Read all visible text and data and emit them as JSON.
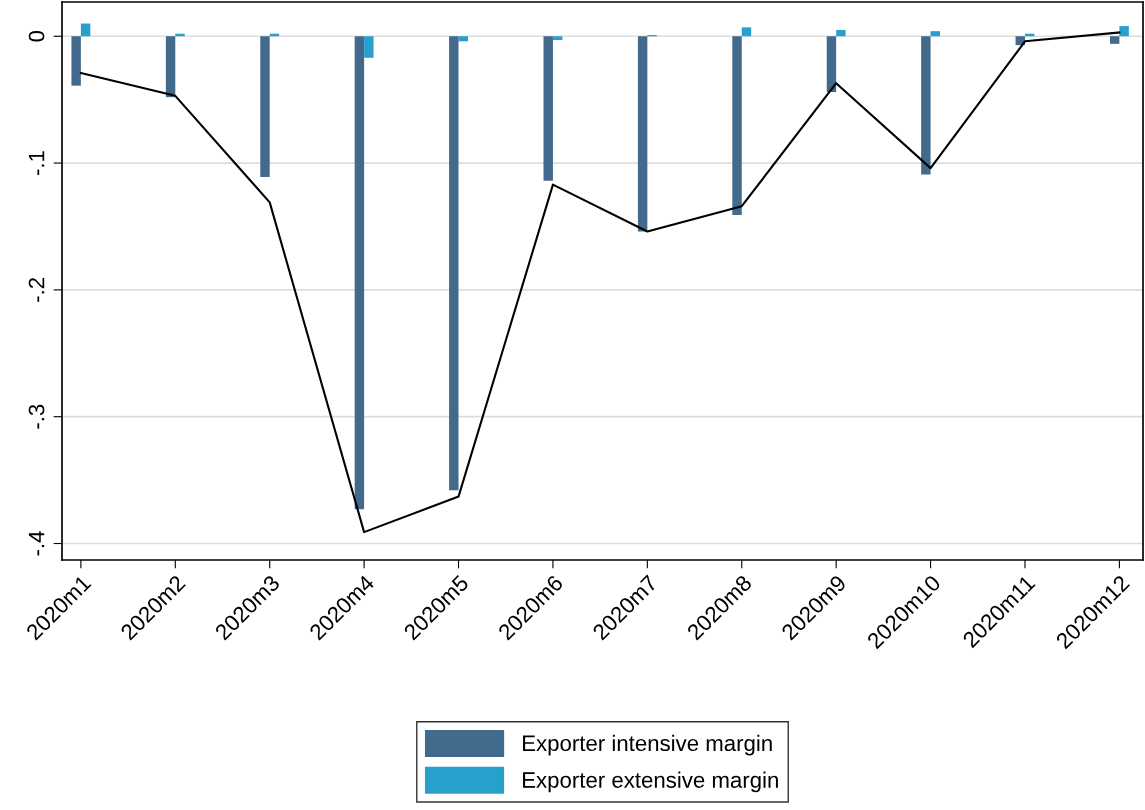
{
  "chart_data": {
    "type": "bar",
    "categories": [
      "2020m1",
      "2020m2",
      "2020m3",
      "2020m4",
      "2020m5",
      "2020m6",
      "2020m7",
      "2020m8",
      "2020m9",
      "2020m10",
      "2020m11",
      "2020m12"
    ],
    "series": [
      {
        "name": "Exporter intensive margin",
        "color": "#426a8c",
        "values": [
          -0.039,
          -0.048,
          -0.111,
          -0.373,
          -0.358,
          -0.114,
          -0.154,
          -0.141,
          -0.044,
          -0.109,
          -0.007,
          -0.006
        ]
      },
      {
        "name": "Exporter extensive margin",
        "color": "#28a0cc",
        "values": [
          0.01,
          0.002,
          0.002,
          -0.017,
          -0.004,
          -0.003,
          0.001,
          0.007,
          0.005,
          0.004,
          0.002,
          0.008
        ]
      },
      {
        "type": "line",
        "color": "#000000",
        "values": [
          -0.029,
          -0.047,
          -0.131,
          -0.391,
          -0.363,
          -0.117,
          -0.154,
          -0.134,
          -0.037,
          -0.104,
          -0.004,
          0.003
        ]
      }
    ],
    "ylim": [
      -0.413,
      0.027
    ],
    "yticks": [
      {
        "value": -0.4,
        "label": "-.4"
      },
      {
        "value": -0.3,
        "label": "-.3"
      },
      {
        "value": -0.2,
        "label": "-.2"
      },
      {
        "value": -0.1,
        "label": "-.1"
      },
      0
    ],
    "grid": "y",
    "legend": "bottom"
  }
}
